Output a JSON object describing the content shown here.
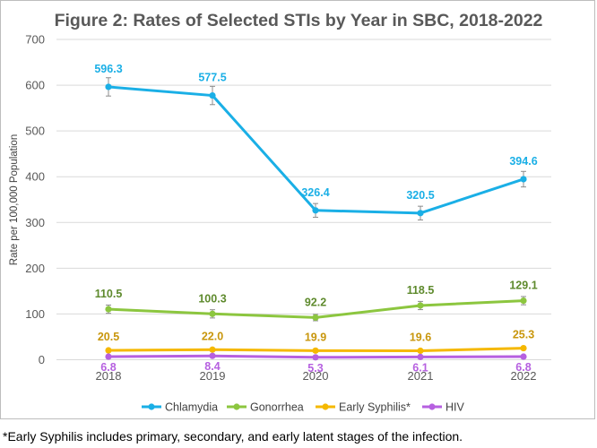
{
  "chart_data": {
    "type": "line",
    "title": "Figure 2: Rates of Selected STIs by Year in SBC, 2018-2022",
    "xlabel": "",
    "ylabel": "Rate per 100,000 Population",
    "categories": [
      "2018",
      "2019",
      "2020",
      "2021",
      "2022"
    ],
    "ylim": [
      0,
      700
    ],
    "yticks": [
      0,
      100,
      200,
      300,
      400,
      500,
      600,
      700
    ],
    "grid": true,
    "legend_position": "bottom",
    "series": [
      {
        "name": "Chlamydia",
        "color": "#1aafe6",
        "values": [
          596.3,
          577.5,
          326.4,
          320.5,
          394.6
        ],
        "labels": [
          "596.3",
          "577.5",
          "326.4",
          "320.5",
          "394.6"
        ],
        "error": [
          20,
          20,
          15,
          15,
          17
        ]
      },
      {
        "name": "Gonorrhea",
        "color": "#8cc63f",
        "values": [
          110.5,
          100.3,
          92.2,
          118.5,
          129.1
        ],
        "labels": [
          "110.5",
          "100.3",
          "92.2",
          "118.5",
          "129.1"
        ],
        "error": [
          9,
          9,
          7,
          9,
          9
        ]
      },
      {
        "name": "Early Syphilis*",
        "color": "#f5b800",
        "values": [
          20.5,
          22.0,
          19.9,
          19.6,
          25.3
        ],
        "labels": [
          "20.5",
          "22.0",
          "19.9",
          "19.6",
          "25.3"
        ],
        "error": [
          0,
          0,
          0,
          0,
          0
        ]
      },
      {
        "name": "HIV",
        "color": "#b660e0",
        "values": [
          6.8,
          8.4,
          5.3,
          6.1,
          6.8
        ],
        "labels": [
          "6.8",
          "8.4",
          "5.3",
          "6.1",
          "6.8"
        ],
        "error": [
          0,
          0,
          0,
          0,
          0
        ]
      }
    ],
    "label_colors": {
      "Chlamydia": "#1aafe6",
      "Gonorrhea": "#5e8a2d",
      "Early Syphilis*": "#c8960c",
      "HIV": "#b660e0"
    }
  },
  "footnote": "*Early Syphilis includes primary, secondary, and early latent stages of the infection."
}
